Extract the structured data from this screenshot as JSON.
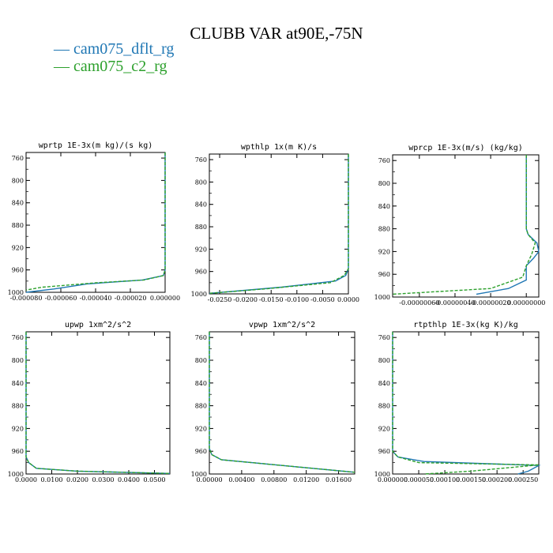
{
  "title": "CLUBB VAR at90E,-75N",
  "legend": [
    {
      "label": "— cam075_dflt_rg",
      "color": "#1f77b4"
    },
    {
      "label": "— cam075_c2_rg",
      "color": "#2ca02c"
    }
  ],
  "chart_data": [
    {
      "type": "line",
      "title": "wprtp  1E-3x(m kg)/(s kg)",
      "xlim": [
        -8e-05,
        0.0
      ],
      "ylim": [
        1000,
        750
      ],
      "y_inverted": true,
      "xticks": [
        -8e-05,
        -6e-05,
        -4e-05,
        -2e-05,
        0.0
      ],
      "xtick_labels": [
        "-0.000080",
        "-0.000060",
        "-0.000040",
        "-0.000020",
        "0.000000"
      ],
      "yticks": [
        760,
        800,
        840,
        880,
        920,
        960,
        1000
      ],
      "ytick_labels": [
        "760",
        "800",
        "840",
        "880",
        "920",
        "960",
        "1000"
      ],
      "series": [
        {
          "name": "cam075_dflt_rg",
          "color": "#1f77b4",
          "dashed": false,
          "x": [
            0.0,
            0.0,
            -1e-06,
            -1.3e-05,
            -4.5e-05,
            -6.4e-05,
            -8e-05
          ],
          "y": [
            750,
            960,
            970,
            978,
            985,
            994,
            1000
          ]
        },
        {
          "name": "cam075_c2_rg",
          "color": "#2ca02c",
          "dashed": true,
          "x": [
            0.0,
            0.0,
            -1e-06,
            -1.2e-05,
            -4e-05,
            -7.1e-05,
            -8e-05
          ],
          "y": [
            750,
            960,
            970,
            978,
            983,
            991,
            996
          ]
        }
      ]
    },
    {
      "type": "line",
      "title": "wpthlp  1x(m K)/s",
      "xlim": [
        -0.027,
        0.0
      ],
      "ylim": [
        1000,
        750
      ],
      "y_inverted": true,
      "xticks": [
        -0.025,
        -0.02,
        -0.015,
        -0.01,
        -0.005,
        0.0
      ],
      "xtick_labels": [
        "-0.0250",
        "-0.0200",
        "-0.0150",
        "-0.0100",
        "-0.0050",
        "0.0000"
      ],
      "yticks": [
        760,
        800,
        840,
        880,
        920,
        960,
        1000
      ],
      "ytick_labels": [
        "760",
        "800",
        "840",
        "880",
        "920",
        "960",
        "1000"
      ],
      "series": [
        {
          "name": "cam075_dflt_rg",
          "color": "#1f77b4",
          "dashed": false,
          "x": [
            0.0,
            0.0,
            -0.0005,
            -0.0025,
            -0.013,
            -0.027
          ],
          "y": [
            750,
            955,
            967,
            977,
            988,
            999
          ]
        },
        {
          "name": "cam075_c2_rg",
          "color": "#2ca02c",
          "dashed": true,
          "x": [
            0.0,
            0.0,
            -0.0008,
            -0.0035,
            -0.016,
            -0.027
          ],
          "y": [
            750,
            955,
            967,
            980,
            991,
            999
          ]
        }
      ]
    },
    {
      "type": "line",
      "title": "wprcp  1E-3x(m/s) (kg/kg)",
      "xlim": [
        -7.5e-07,
        7e-08
      ],
      "ylim": [
        1000,
        750
      ],
      "y_inverted": true,
      "xticks": [
        -6e-07,
        -4e-07,
        -2e-07,
        0.0
      ],
      "xtick_labels": [
        "-0.00000060",
        "-0.00000040",
        "-0.00000020",
        "0.00000000"
      ],
      "yticks": [
        760,
        800,
        840,
        880,
        920,
        960,
        1000
      ],
      "ytick_labels": [
        "760",
        "800",
        "840",
        "880",
        "920",
        "960",
        "1000"
      ],
      "series": [
        {
          "name": "cam075_dflt_rg",
          "color": "#1f77b4",
          "dashed": false,
          "x": [
            0.0,
            0.0,
            1e-08,
            6e-08,
            7e-08,
            4e-08,
            0.0,
            0.0,
            -1e-07,
            -2.8e-07
          ],
          "y": [
            750,
            880,
            890,
            905,
            920,
            932,
            945,
            970,
            985,
            995
          ]
        },
        {
          "name": "cam075_c2_rg",
          "color": "#2ca02c",
          "dashed": true,
          "x": [
            0.0,
            0.0,
            1e-08,
            5e-08,
            3e-08,
            0.0,
            -2e-08,
            -2e-07,
            -7.5e-07
          ],
          "y": [
            750,
            880,
            890,
            905,
            925,
            945,
            965,
            985,
            995
          ]
        }
      ]
    },
    {
      "type": "line",
      "title": "upwp  1xm^2/s^2",
      "xlim": [
        0.0,
        0.056
      ],
      "ylim": [
        1000,
        750
      ],
      "y_inverted": true,
      "xticks": [
        0.0,
        0.01,
        0.02,
        0.03,
        0.04,
        0.05
      ],
      "xtick_labels": [
        "0.0000",
        "0.0100",
        "0.0200",
        "0.0300",
        "0.0400",
        "0.0500"
      ],
      "yticks": [
        760,
        800,
        840,
        880,
        920,
        960,
        1000
      ],
      "ytick_labels": [
        "760",
        "800",
        "840",
        "880",
        "920",
        "960",
        "1000"
      ],
      "series": [
        {
          "name": "cam075_dflt_rg",
          "color": "#1f77b4",
          "dashed": false,
          "x": [
            0.0,
            0.0,
            0.001,
            0.004,
            0.02,
            0.056
          ],
          "y": [
            750,
            970,
            980,
            990,
            995,
            999
          ]
        },
        {
          "name": "cam075_c2_rg",
          "color": "#2ca02c",
          "dashed": true,
          "x": [
            0.0,
            0.0,
            0.001,
            0.004,
            0.02,
            0.056
          ],
          "y": [
            750,
            970,
            980,
            990,
            995,
            999
          ]
        }
      ]
    },
    {
      "type": "line",
      "title": "vpwp  1xm^2/s^2",
      "xlim": [
        0.0,
        0.018
      ],
      "ylim": [
        1000,
        750
      ],
      "y_inverted": true,
      "xticks": [
        0.0,
        0.004,
        0.008,
        0.012,
        0.016
      ],
      "xtick_labels": [
        "0.00000",
        "0.00400",
        "0.00800",
        "0.01200",
        "0.01600"
      ],
      "yticks": [
        760,
        800,
        840,
        880,
        920,
        960,
        1000
      ],
      "ytick_labels": [
        "760",
        "800",
        "840",
        "880",
        "920",
        "960",
        "1000"
      ],
      "series": [
        {
          "name": "cam075_dflt_rg",
          "color": "#1f77b4",
          "dashed": false,
          "x": [
            0.0,
            0.0,
            0.0003,
            0.0015,
            0.018
          ],
          "y": [
            750,
            955,
            966,
            975,
            997
          ]
        },
        {
          "name": "cam075_c2_rg",
          "color": "#2ca02c",
          "dashed": true,
          "x": [
            0.0,
            0.0,
            0.0003,
            0.0015,
            0.018
          ],
          "y": [
            750,
            955,
            966,
            975,
            997
          ]
        }
      ]
    },
    {
      "type": "line",
      "title": "rtpthlp  1E-3x(kg K)/kg",
      "xlim": [
        0.0,
        0.00028
      ],
      "ylim": [
        1000,
        750
      ],
      "y_inverted": true,
      "xticks": [
        0.0,
        5e-05,
        0.0001,
        0.00015,
        0.0002,
        0.00025
      ],
      "xtick_labels": [
        "0.000000",
        "0.000050",
        "0.000100",
        "0.000150",
        "0.000200",
        "0.000250"
      ],
      "yticks": [
        760,
        800,
        840,
        880,
        920,
        960,
        1000
      ],
      "ytick_labels": [
        "760",
        "800",
        "840",
        "880",
        "920",
        "960",
        "1000"
      ],
      "series": [
        {
          "name": "cam075_dflt_rg",
          "color": "#1f77b4",
          "dashed": false,
          "x": [
            0.0,
            0.0,
            1e-05,
            6e-05,
            0.00028,
            0.00026,
            0.00024
          ],
          "y": [
            750,
            960,
            970,
            978,
            985,
            995,
            1000
          ]
        },
        {
          "name": "cam075_c2_rg",
          "color": "#2ca02c",
          "dashed": true,
          "x": [
            0.0,
            0.0,
            1e-05,
            5e-05,
            0.00028,
            0.00015,
            6e-05
          ],
          "y": [
            750,
            960,
            970,
            980,
            984,
            995,
            1000
          ]
        }
      ]
    }
  ]
}
